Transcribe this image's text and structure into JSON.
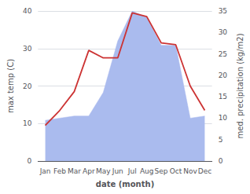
{
  "chart_data": {
    "type": "line",
    "xlabel": "date (month)",
    "ylabel": "max temp (C)",
    "y2label": "med. precipitation (kg/m2)",
    "categories": [
      "Jan",
      "Feb",
      "Mar",
      "Apr",
      "May",
      "Jun",
      "Jul",
      "Aug",
      "Sep",
      "Oct",
      "Nov",
      "Dec"
    ],
    "series": [
      {
        "type": "area",
        "color": "#aabbee",
        "axis": "y2",
        "values": [
          9.5,
          10.0,
          10.5,
          10.5,
          16.0,
          28.0,
          35.0,
          33.5,
          27.0,
          27.0,
          10.0,
          10.5
        ]
      },
      {
        "type": "line",
        "color": "#cc3333",
        "values": [
          9.5,
          13.5,
          18.5,
          29.5,
          27.5,
          27.5,
          39.5,
          38.5,
          31.5,
          31.0,
          20.0,
          13.5
        ]
      }
    ],
    "ylim": [
      0,
      40
    ],
    "yticks": [
      0,
      10,
      20,
      30,
      40
    ],
    "y2lim": [
      0,
      35
    ],
    "y2ticks": [
      0,
      5,
      10,
      15,
      20,
      25,
      30,
      35
    ],
    "grid": true
  }
}
